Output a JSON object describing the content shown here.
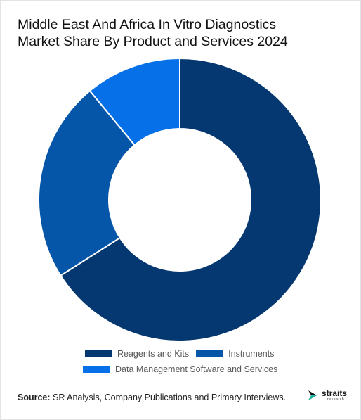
{
  "title_lines": [
    "Middle East And Africa In Vitro Diagnostics",
    "Market Share By Product and Services 2024"
  ],
  "chart_data": {
    "type": "pie",
    "subtype": "donut",
    "title": "Middle East And Africa In Vitro Diagnostics Market Share By Product and Services 2024",
    "categories": [
      "Reagents and Kits",
      "Instruments",
      "Data Management Software and Services"
    ],
    "values": [
      66,
      23,
      11
    ],
    "unit": "%",
    "colors": [
      "#053770",
      "#0556a8",
      "#0570e8"
    ],
    "legend_position": "bottom",
    "data_labels": false
  },
  "source": {
    "label": "Source:",
    "text": " SR Analysis, Company Publications and Primary Interviews."
  },
  "logo": {
    "name": "straits",
    "sub": "research"
  }
}
